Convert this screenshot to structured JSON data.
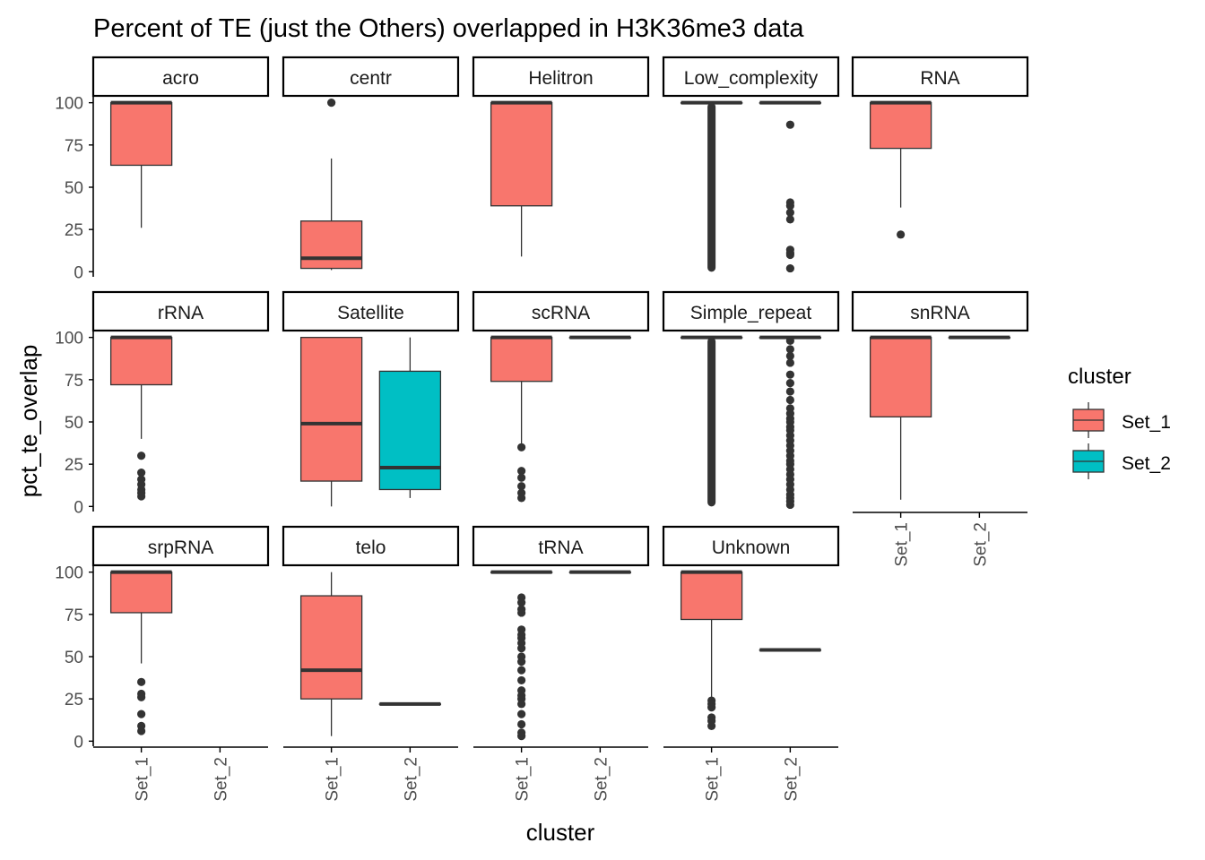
{
  "chart_data": {
    "type": "boxplot",
    "title": "Percent of TE (just the Others) overlapped in H3K36me3 data",
    "xlabel": "cluster",
    "ylabel": "pct_te_overlap",
    "categories": [
      "Set_1",
      "Set_2"
    ],
    "yticks": [
      0,
      25,
      50,
      75,
      100
    ],
    "ylim": [
      -3,
      103
    ],
    "legend": {
      "title": "cluster",
      "position": "right",
      "items": [
        {
          "label": "Set_1",
          "color": "#F8766D"
        },
        {
          "label": "Set_2",
          "color": "#00BFC4"
        }
      ]
    },
    "colors": {
      "Set_1": "#F8766D",
      "Set_2": "#00BFC4",
      "line": "#333333",
      "axis": "#000000",
      "tick_text": "#4D4D4D"
    },
    "panels": [
      {
        "label": "acro",
        "boxes": [
          {
            "cluster": "Set_1",
            "q1": 63,
            "median": 100,
            "q3": 100,
            "lower": 26,
            "upper": 100,
            "outliers": []
          }
        ]
      },
      {
        "label": "centr",
        "boxes": [
          {
            "cluster": "Set_1",
            "q1": 2,
            "median": 8,
            "q3": 30,
            "lower": 1,
            "upper": 67,
            "outliers": [
              100
            ]
          }
        ]
      },
      {
        "label": "Helitron",
        "boxes": [
          {
            "cluster": "Set_1",
            "q1": 39,
            "median": 100,
            "q3": 100,
            "lower": 9,
            "upper": 100,
            "outliers": []
          }
        ]
      },
      {
        "label": "Low_complexity",
        "boxes": [
          {
            "cluster": "Set_1",
            "q1": 100,
            "median": 100,
            "q3": 100,
            "lower": 100,
            "upper": 100,
            "outliers": [],
            "outlier_band": [
              0,
              100
            ]
          },
          {
            "cluster": "Set_2",
            "q1": 100,
            "median": 100,
            "q3": 100,
            "lower": 100,
            "upper": 100,
            "outliers": [
              87,
              41,
              39,
              35,
              31,
              13,
              11,
              10,
              2
            ]
          }
        ]
      },
      {
        "label": "RNA",
        "boxes": [
          {
            "cluster": "Set_1",
            "q1": 73,
            "median": 100,
            "q3": 100,
            "lower": 38,
            "upper": 100,
            "outliers": [
              22
            ]
          }
        ]
      },
      {
        "label": "rRNA",
        "boxes": [
          {
            "cluster": "Set_1",
            "q1": 72,
            "median": 100,
            "q3": 100,
            "lower": 40,
            "upper": 100,
            "outliers": [
              30,
              20,
              16,
              13,
              10,
              8,
              6
            ]
          }
        ]
      },
      {
        "label": "Satellite",
        "boxes": [
          {
            "cluster": "Set_1",
            "q1": 15,
            "median": 49,
            "q3": 100,
            "lower": 0,
            "upper": 100,
            "outliers": []
          },
          {
            "cluster": "Set_2",
            "q1": 10,
            "median": 23,
            "q3": 80,
            "lower": 5,
            "upper": 100,
            "outliers": []
          }
        ]
      },
      {
        "label": "scRNA",
        "boxes": [
          {
            "cluster": "Set_1",
            "q1": 74,
            "median": 100,
            "q3": 100,
            "lower": 35,
            "upper": 100,
            "outliers": [
              35,
              21,
              17,
              12,
              8,
              5
            ]
          },
          {
            "cluster": "Set_2",
            "q1": 100,
            "median": 100,
            "q3": 100,
            "lower": 100,
            "upper": 100,
            "outliers": []
          }
        ]
      },
      {
        "label": "Simple_repeat",
        "boxes": [
          {
            "cluster": "Set_1",
            "q1": 100,
            "median": 100,
            "q3": 100,
            "lower": 100,
            "upper": 100,
            "outliers": [],
            "outlier_band": [
              0,
              100
            ]
          },
          {
            "cluster": "Set_2",
            "q1": 100,
            "median": 100,
            "q3": 100,
            "lower": 100,
            "upper": 100,
            "outliers": [
              98,
              93,
              89,
              85,
              78,
              73,
              68,
              63,
              58,
              55,
              52,
              50,
              47,
              45,
              42,
              39,
              36,
              33,
              30,
              27,
              25,
              22,
              19,
              16,
              13,
              10,
              7,
              5,
              3,
              1
            ]
          }
        ]
      },
      {
        "label": "snRNA",
        "boxes": [
          {
            "cluster": "Set_1",
            "q1": 53,
            "median": 100,
            "q3": 100,
            "lower": 4,
            "upper": 100,
            "outliers": []
          },
          {
            "cluster": "Set_2",
            "q1": 100,
            "median": 100,
            "q3": 100,
            "lower": 100,
            "upper": 100,
            "outliers": []
          }
        ]
      },
      {
        "label": "srpRNA",
        "boxes": [
          {
            "cluster": "Set_1",
            "q1": 76,
            "median": 100,
            "q3": 100,
            "lower": 46,
            "upper": 100,
            "outliers": [
              35,
              28,
              26,
              16,
              9,
              6
            ]
          }
        ]
      },
      {
        "label": "telo",
        "boxes": [
          {
            "cluster": "Set_1",
            "q1": 25,
            "median": 42,
            "q3": 86,
            "lower": 3,
            "upper": 100,
            "outliers": []
          },
          {
            "cluster": "Set_2",
            "q1": 22,
            "median": 22,
            "q3": 22,
            "lower": 22,
            "upper": 22,
            "outliers": []
          }
        ]
      },
      {
        "label": "tRNA",
        "boxes": [
          {
            "cluster": "Set_1",
            "q1": 100,
            "median": 100,
            "q3": 100,
            "lower": 100,
            "upper": 100,
            "outliers": [
              85,
              82,
              78,
              76,
              66,
              63,
              61,
              58,
              55,
              50,
              47,
              42,
              36,
              30,
              27,
              25,
              22,
              16,
              10,
              5,
              3
            ]
          },
          {
            "cluster": "Set_2",
            "q1": 100,
            "median": 100,
            "q3": 100,
            "lower": 100,
            "upper": 100,
            "outliers": []
          }
        ]
      },
      {
        "label": "Unknown",
        "boxes": [
          {
            "cluster": "Set_1",
            "q1": 72,
            "median": 100,
            "q3": 100,
            "lower": 25,
            "upper": 100,
            "outliers": [
              24,
              22,
              20,
              14,
              12,
              9
            ]
          },
          {
            "cluster": "Set_2",
            "q1": 54,
            "median": 54,
            "q3": 54,
            "lower": 54,
            "upper": 55,
            "outliers": []
          }
        ]
      }
    ]
  }
}
